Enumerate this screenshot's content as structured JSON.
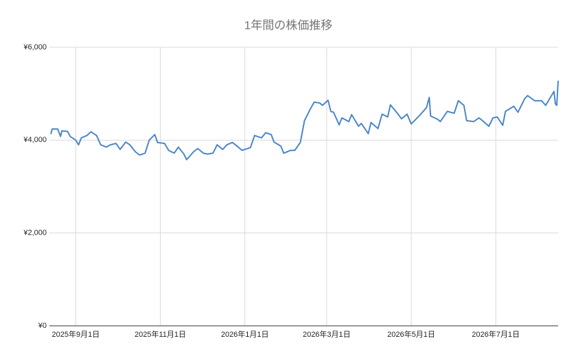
{
  "chart_data": {
    "type": "line",
    "title": "1年間の株価推移",
    "x": [
      "2025-08-14",
      "2025-08-15",
      "2025-08-19",
      "2025-08-21",
      "2025-08-22",
      "2025-08-26",
      "2025-08-28",
      "2025-09-01",
      "2025-09-03",
      "2025-09-05",
      "2025-09-09",
      "2025-09-12",
      "2025-09-16",
      "2025-09-19",
      "2025-09-23",
      "2025-09-26",
      "2025-09-30",
      "2025-10-03",
      "2025-10-07",
      "2025-10-10",
      "2025-10-14",
      "2025-10-17",
      "2025-10-21",
      "2025-10-24",
      "2025-10-28",
      "2025-10-30",
      "2025-11-04",
      "2025-11-07",
      "2025-11-11",
      "2025-11-14",
      "2025-11-18",
      "2025-11-20",
      "2025-11-25",
      "2025-11-28",
      "2025-12-02",
      "2025-12-05",
      "2025-12-09",
      "2025-12-12",
      "2025-12-16",
      "2025-12-19",
      "2025-12-23",
      "2025-12-26",
      "2025-12-30",
      "2026-01-05",
      "2026-01-08",
      "2026-01-13",
      "2026-01-16",
      "2026-01-20",
      "2026-01-22",
      "2026-01-27",
      "2026-01-29",
      "2026-02-03",
      "2026-02-06",
      "2026-02-10",
      "2026-02-13",
      "2026-02-17",
      "2026-02-20",
      "2026-02-24",
      "2026-02-26",
      "2026-03-02",
      "2026-03-04",
      "2026-03-06",
      "2026-03-10",
      "2026-03-12",
      "2026-03-17",
      "2026-03-19",
      "2026-03-24",
      "2026-03-26",
      "2026-03-31",
      "2026-04-02",
      "2026-04-07",
      "2026-04-10",
      "2026-04-14",
      "2026-04-16",
      "2026-04-21",
      "2026-04-24",
      "2026-04-28",
      "2026-05-01",
      "2026-05-07",
      "2026-05-12",
      "2026-05-14",
      "2026-05-15",
      "2026-05-20",
      "2026-05-22",
      "2026-05-27",
      "2026-06-01",
      "2026-06-04",
      "2026-06-08",
      "2026-06-10",
      "2026-06-15",
      "2026-06-19",
      "2026-06-23",
      "2026-06-26",
      "2026-06-29",
      "2026-07-02",
      "2026-07-06",
      "2026-07-08",
      "2026-07-14",
      "2026-07-17",
      "2026-07-22",
      "2026-07-24",
      "2026-07-29",
      "2026-08-03",
      "2026-08-06",
      "2026-08-10",
      "2026-08-12",
      "2026-08-13",
      "2026-08-14",
      "2026-08-15"
    ],
    "values": [
      4130,
      4240,
      4240,
      4080,
      4200,
      4190,
      4080,
      4000,
      3900,
      4050,
      4100,
      4180,
      4100,
      3900,
      3850,
      3900,
      3930,
      3800,
      3960,
      3900,
      3750,
      3680,
      3720,
      4000,
      4120,
      3950,
      3930,
      3780,
      3720,
      3850,
      3700,
      3580,
      3750,
      3820,
      3720,
      3700,
      3720,
      3900,
      3800,
      3900,
      3950,
      3880,
      3780,
      3840,
      4100,
      4050,
      4160,
      4120,
      3960,
      3870,
      3720,
      3780,
      3780,
      3950,
      4420,
      4660,
      4820,
      4800,
      4750,
      4860,
      4620,
      4600,
      4330,
      4480,
      4400,
      4550,
      4300,
      4360,
      4140,
      4380,
      4250,
      4560,
      4500,
      4760,
      4580,
      4460,
      4560,
      4350,
      4530,
      4700,
      4920,
      4520,
      4450,
      4400,
      4620,
      4580,
      4850,
      4750,
      4420,
      4400,
      4480,
      4380,
      4300,
      4480,
      4500,
      4320,
      4620,
      4730,
      4600,
      4900,
      4960,
      4850,
      4850,
      4750,
      4950,
      5050,
      4780,
      4750,
      5280
    ],
    "color": "#4a86c8",
    "xlim": [
      "2025-08-13",
      "2026-08-15"
    ],
    "xticks": [
      {
        "value": "2025-09-01",
        "label": "2025年9月1日"
      },
      {
        "value": "2025-11-01",
        "label": "2025年11月1日"
      },
      {
        "value": "2026-01-01",
        "label": "2026年1月1日"
      },
      {
        "value": "2026-03-01",
        "label": "2026年3月1日"
      },
      {
        "value": "2026-05-01",
        "label": "2026年5月1日"
      },
      {
        "value": "2026-07-01",
        "label": "2026年7月1日"
      }
    ],
    "ylim": [
      0,
      6000
    ],
    "yticks": [
      {
        "value": 0,
        "label": "¥0"
      },
      {
        "value": 2000,
        "label": "¥2,000"
      },
      {
        "value": 4000,
        "label": "¥4,000"
      },
      {
        "value": 6000,
        "label": "¥6,000"
      }
    ],
    "grid": true
  }
}
